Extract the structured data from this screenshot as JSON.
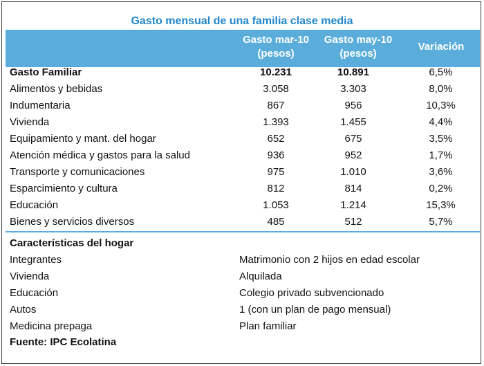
{
  "title": "Gasto mensual de una familia clase media",
  "columns": {
    "c1_line1": "Gasto mar-10",
    "c1_line2": "(pesos)",
    "c2_line1": "Gasto may-10",
    "c2_line2": "(pesos)",
    "c3": "Variación"
  },
  "rows": [
    {
      "label": "Gasto Familiar",
      "mar": "10.231",
      "may": "10.891",
      "var": "6,5%"
    },
    {
      "label": "Alimentos y bebidas",
      "mar": "3.058",
      "may": "3.303",
      "var": "8,0%"
    },
    {
      "label": "Indumentaria",
      "mar": "867",
      "may": "956",
      "var": "10,3%"
    },
    {
      "label": "Vivienda",
      "mar": "1.393",
      "may": "1.455",
      "var": "4,4%"
    },
    {
      "label": "Equipamiento y mant. del hogar",
      "mar": "652",
      "may": "675",
      "var": "3,5%"
    },
    {
      "label": "Atención médica y gastos para la salud",
      "mar": "936",
      "may": "952",
      "var": "1,7%"
    },
    {
      "label": "Transporte y comunicaciones",
      "mar": "975",
      "may": "1.010",
      "var": "3,6%"
    },
    {
      "label": "Esparcimiento y cultura",
      "mar": "812",
      "may": "814",
      "var": "0,2%"
    },
    {
      "label": "Educación",
      "mar": "1.053",
      "may": "1.214",
      "var": "15,3%"
    },
    {
      "label": "Bienes y servicios diversos",
      "mar": "485",
      "may": "512",
      "var": "5,7%"
    }
  ],
  "characteristics": {
    "heading": "Características del hogar",
    "items": [
      {
        "key": "Integrantes",
        "value": "Matrimonio con 2 hijos en edad escolar"
      },
      {
        "key": "Vivienda",
        "value": "Alquilada"
      },
      {
        "key": "Educación",
        "value": "Colegio privado subvencionado"
      },
      {
        "key": "Autos",
        "value": "1 (con un plan de pago mensual)"
      },
      {
        "key": "Medicina prepaga",
        "value": "Plan familiar"
      }
    ]
  },
  "source": "Fuente: IPC Ecolatina",
  "colors": {
    "header_bg": "#5aaddb",
    "title": "#1f86c9"
  }
}
